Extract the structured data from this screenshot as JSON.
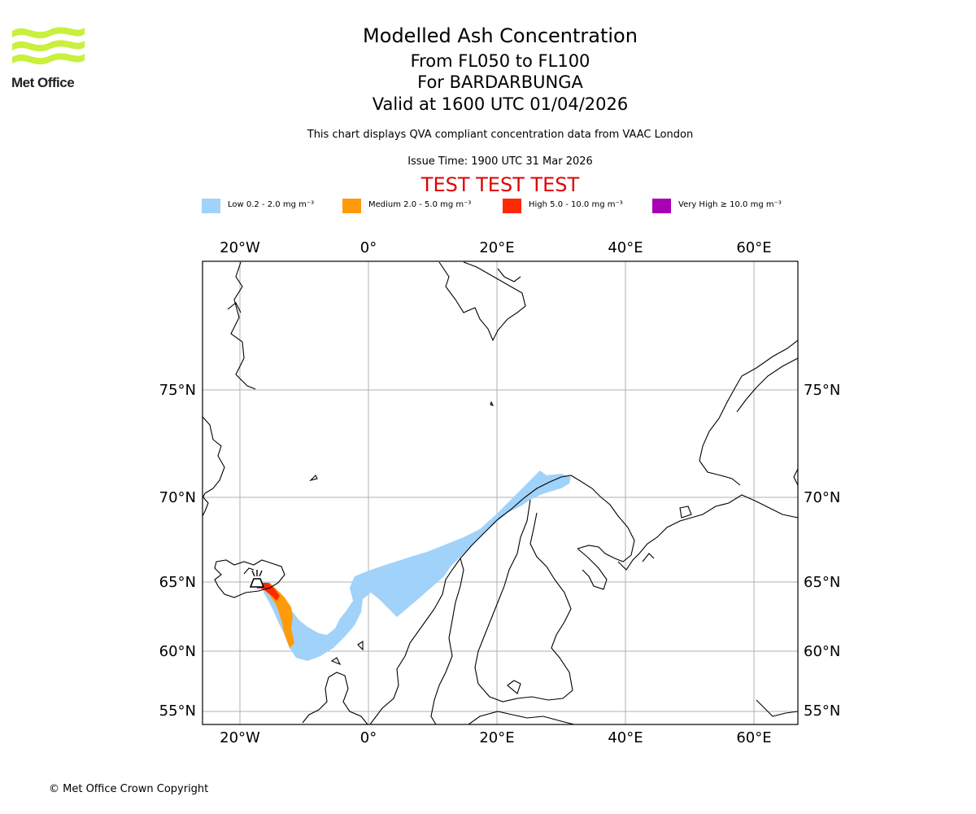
{
  "logo": {
    "name": "Met Office",
    "color": "#c8f03c"
  },
  "title": {
    "main": "Modelled Ash Concentration",
    "levels": "From FL050 to FL100",
    "volcano": "For BARDARBUNGA",
    "valid": "Valid at 1600 UTC 01/04/2026",
    "description": "This chart displays QVA compliant concentration data from VAAC London",
    "issue": "Issue Time: 1900 UTC 31 Mar 2026",
    "test_banner": "TEST TEST TEST"
  },
  "legend": [
    {
      "label": "Low 0.2 - 2.0 mg m⁻³",
      "color": "#a0d2fa"
    },
    {
      "label": "Medium 2.0 - 5.0 mg m⁻³",
      "color": "#ff9a0a"
    },
    {
      "label": "High 5.0 - 10.0 mg m⁻³",
      "color": "#ff2800"
    },
    {
      "label": "Very High ≥ 10.0 mg m⁻³",
      "color": "#a800b4"
    }
  ],
  "axes": {
    "longitude_labels": [
      "20°W",
      "0°",
      "20°E",
      "40°E",
      "60°E"
    ],
    "latitude_labels": [
      "75°N",
      "70°N",
      "65°N",
      "60°N",
      "55°N"
    ]
  },
  "copyright": "© Met Office Crown Copyright"
}
